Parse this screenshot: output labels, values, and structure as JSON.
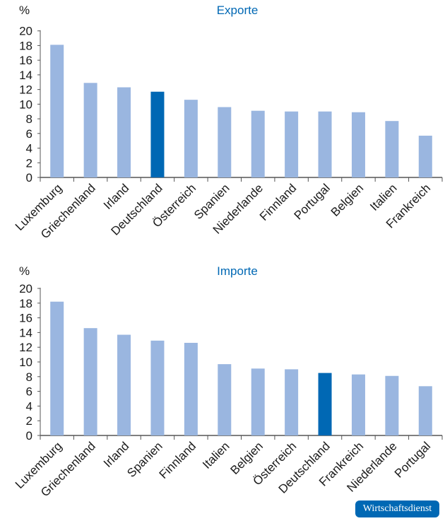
{
  "chart_data": [
    {
      "type": "bar",
      "title": "Exporte",
      "ylabel": "%",
      "ylim": [
        0,
        20
      ],
      "yticks": [
        0,
        2,
        4,
        6,
        8,
        10,
        12,
        14,
        16,
        18,
        20
      ],
      "categories": [
        "Luxemburg",
        "Griechenland",
        "Irland",
        "Deutschland",
        "Österreich",
        "Spanien",
        "Niederlande",
        "Finnland",
        "Portugal",
        "Belgien",
        "Italien",
        "Frankreich"
      ],
      "values": [
        18.1,
        12.9,
        12.3,
        11.7,
        10.6,
        9.6,
        9.1,
        9.0,
        9.0,
        8.9,
        7.7,
        5.7
      ],
      "highlight": "Deutschland"
    },
    {
      "type": "bar",
      "title": "Importe",
      "ylabel": "%",
      "ylim": [
        0,
        20
      ],
      "yticks": [
        0,
        2,
        4,
        6,
        8,
        10,
        12,
        14,
        16,
        18,
        20
      ],
      "categories": [
        "Luxemburg",
        "Griechenland",
        "Irland",
        "Spanien",
        "Finnland",
        "Italien",
        "Belgien",
        "Österreich",
        "Deutschland",
        "Frankreich",
        "Niederlande",
        "Portugal"
      ],
      "values": [
        18.2,
        14.6,
        13.7,
        12.9,
        12.6,
        9.7,
        9.1,
        9.0,
        8.5,
        8.3,
        8.1,
        6.7
      ],
      "highlight": "Deutschland"
    }
  ],
  "colors": {
    "bar": "#9ab6e0",
    "highlight": "#0068b4",
    "title": "#0068b4"
  },
  "footer": {
    "badge": "Wirtschaftsdienst"
  }
}
